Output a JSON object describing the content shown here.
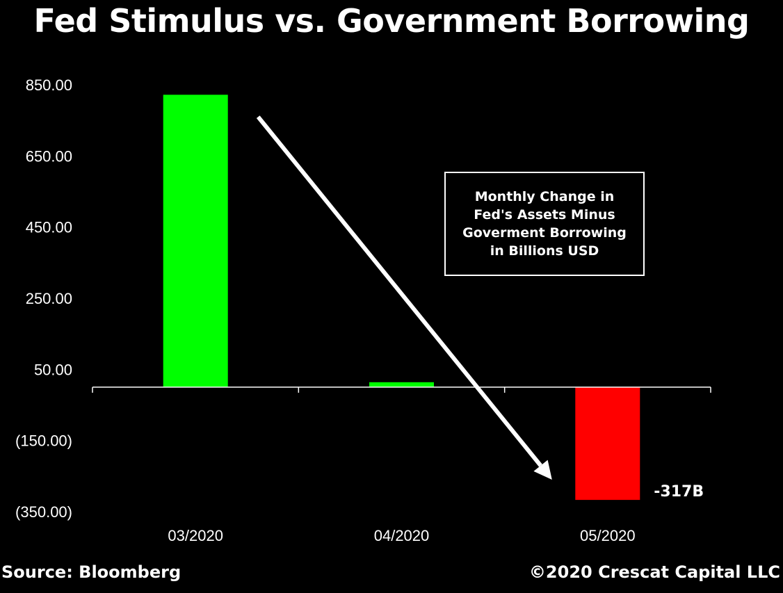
{
  "title": "Fed Stimulus vs. Government Borrowing",
  "footer": {
    "source": "Source: Bloomberg",
    "copyright": "©2020 Crescat Capital LLC"
  },
  "legend": {
    "lines": [
      "Monthly Change in",
      "Fed's Assets Minus",
      "Goverment Borrowing",
      "in Billions USD"
    ]
  },
  "colors": {
    "positive": "#00ff00",
    "negative": "#ff0000",
    "background": "#000000",
    "text": "#ffffff"
  },
  "chart_data": {
    "type": "bar",
    "categories": [
      "03/2020",
      "04/2020",
      "05/2020"
    ],
    "values": [
      822,
      14,
      -317
    ],
    "ylim": [
      -350,
      850
    ],
    "yticks": [
      850,
      650,
      450,
      250,
      50,
      -150,
      -350
    ],
    "ytick_labels": [
      "850.00",
      "650.00",
      "450.00",
      "250.00",
      "50.00",
      "(150.00)",
      "(350.00)"
    ],
    "grid": false,
    "data_labels": [
      {
        "category": "05/2020",
        "text": "-317B"
      }
    ],
    "annotations": [
      {
        "type": "arrow",
        "from": {
          "x": "03/2020",
          "y": 760
        },
        "to": {
          "x": "05/2020",
          "y": -260
        }
      }
    ]
  }
}
